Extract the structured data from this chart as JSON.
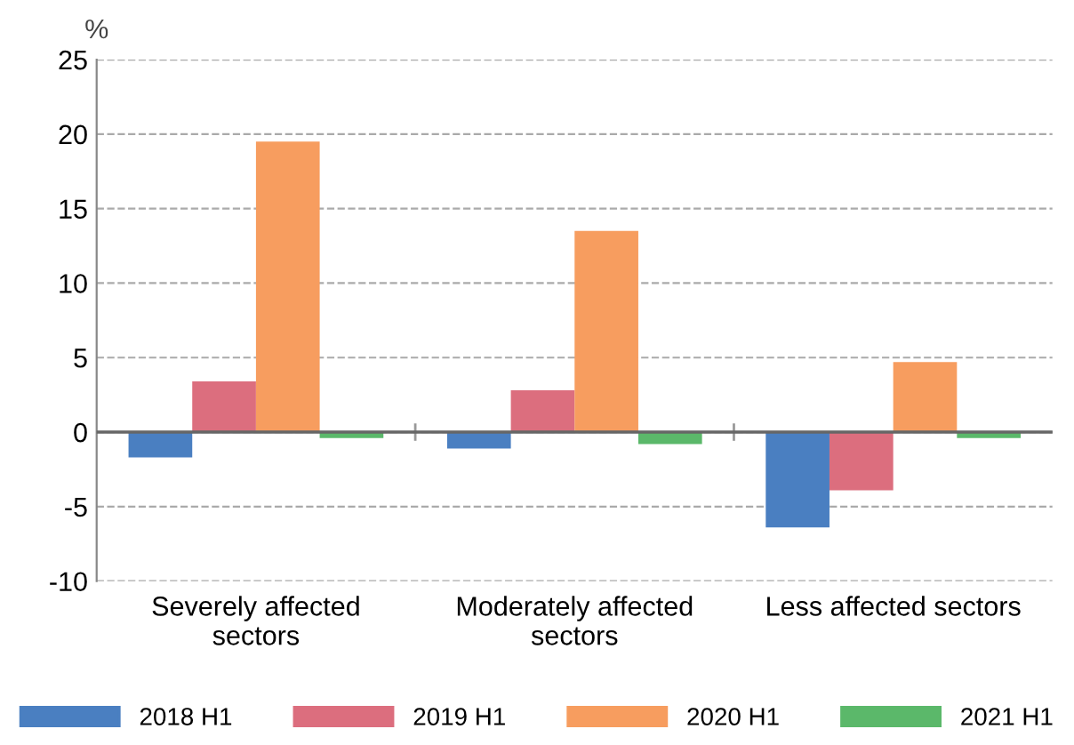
{
  "chart_data": {
    "type": "bar",
    "ylabel": "%",
    "categories": [
      "Severely affected\nsectors",
      "Moderately affected\nsectors",
      "Less affected sectors"
    ],
    "series": [
      {
        "name": "2018 H1",
        "color": "#4a7fc1",
        "values": [
          -1.7,
          -1.1,
          -6.4
        ]
      },
      {
        "name": "2019 H1",
        "color": "#dc6e7e",
        "values": [
          3.4,
          2.8,
          -3.9
        ]
      },
      {
        "name": "2020 H1",
        "color": "#f79d5f",
        "values": [
          19.5,
          13.5,
          4.7
        ]
      },
      {
        "name": "2021 H1",
        "color": "#5bb86a",
        "values": [
          -0.4,
          -0.8,
          -0.4
        ]
      }
    ],
    "ylim": [
      -10,
      25
    ],
    "yticks": [
      -10,
      -5,
      0,
      5,
      10,
      15,
      20,
      25
    ],
    "grid": "y",
    "legend": "bottom"
  }
}
